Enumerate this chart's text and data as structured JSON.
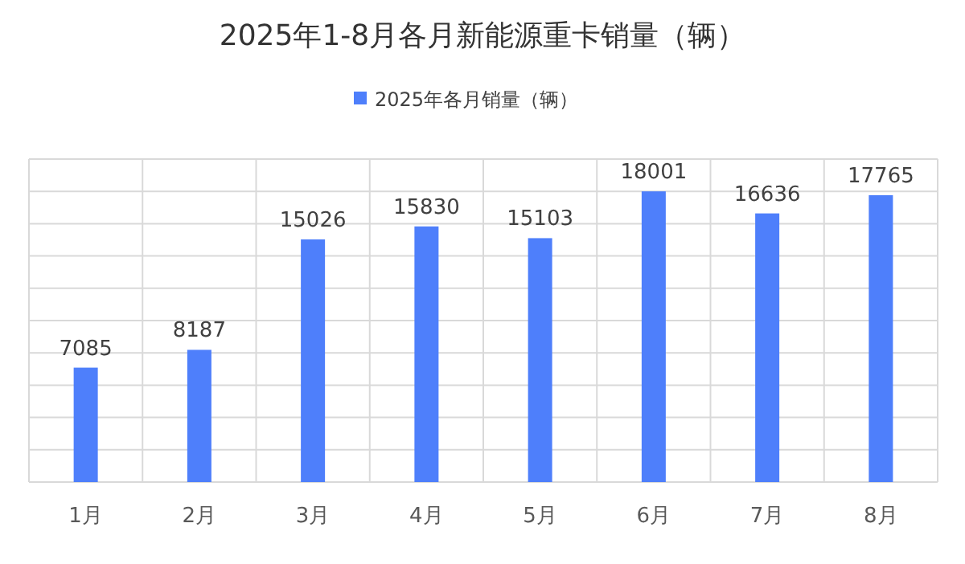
{
  "chart_data": {
    "type": "bar",
    "title": "2025年1-8月各月新能源重卡销量（辆）",
    "categories": [
      "1月",
      "2月",
      "3月",
      "4月",
      "5月",
      "6月",
      "7月",
      "8月"
    ],
    "series": [
      {
        "name": "2025年各月销量（辆）",
        "color": "#4e7ffb",
        "values": [
          7085,
          8187,
          15026,
          15830,
          15103,
          18001,
          16636,
          17765
        ]
      }
    ],
    "data_labels": true,
    "ylim": [
      0,
      20000
    ],
    "yticks": [
      {
        "value": 0,
        "label": null
      },
      {
        "value": 2000,
        "label": null
      },
      {
        "value": 4000,
        "label": null
      },
      {
        "value": 6000,
        "label": null
      },
      {
        "value": 8000,
        "label": null
      },
      {
        "value": 10000,
        "label": null
      },
      {
        "value": 12000,
        "label": null
      },
      {
        "value": 14000,
        "label": null
      },
      {
        "value": 16000,
        "label": null
      },
      {
        "value": 18000,
        "label": null
      },
      {
        "value": 20000,
        "label": null
      }
    ],
    "tick_labels": "x",
    "grid": true,
    "legend": "top"
  }
}
